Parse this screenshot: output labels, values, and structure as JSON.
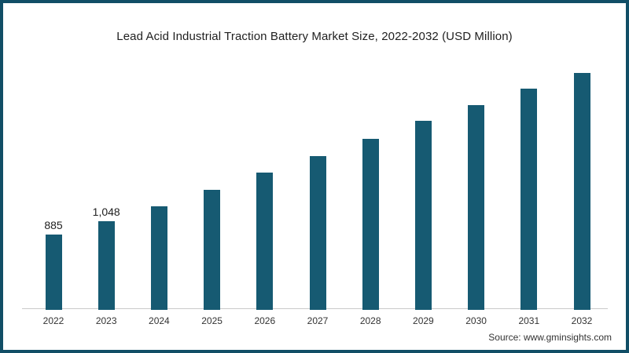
{
  "colors": {
    "bar": "#165a72",
    "frame_border": "#114e66",
    "axis_line": "#c9c9c9",
    "title_text": "#1f1f1f",
    "tick_text": "#333333",
    "value_label_text": "#1f1f1f",
    "source_text": "#333333",
    "background": "#ffffff"
  },
  "chart_data": {
    "type": "bar",
    "title": "Lead Acid Industrial Traction Battery Market Size, 2022-2032 (USD Million)",
    "xlabel": "",
    "ylabel": "",
    "categories": [
      "2022",
      "2023",
      "2024",
      "2025",
      "2026",
      "2027",
      "2028",
      "2029",
      "2030",
      "2031",
      "2032"
    ],
    "values": [
      885,
      1048,
      1220,
      1415,
      1620,
      1815,
      2015,
      2230,
      2415,
      2610,
      2795
    ],
    "point_labels": [
      "885",
      "1,048",
      "",
      "",
      "",
      "",
      "",
      "",
      "",
      "",
      ""
    ],
    "ylim": [
      0,
      3000
    ],
    "grid": false,
    "legend": false,
    "bar_color": "#165a72"
  },
  "footer": {
    "source_label": "Source: www.gminsights.com"
  }
}
